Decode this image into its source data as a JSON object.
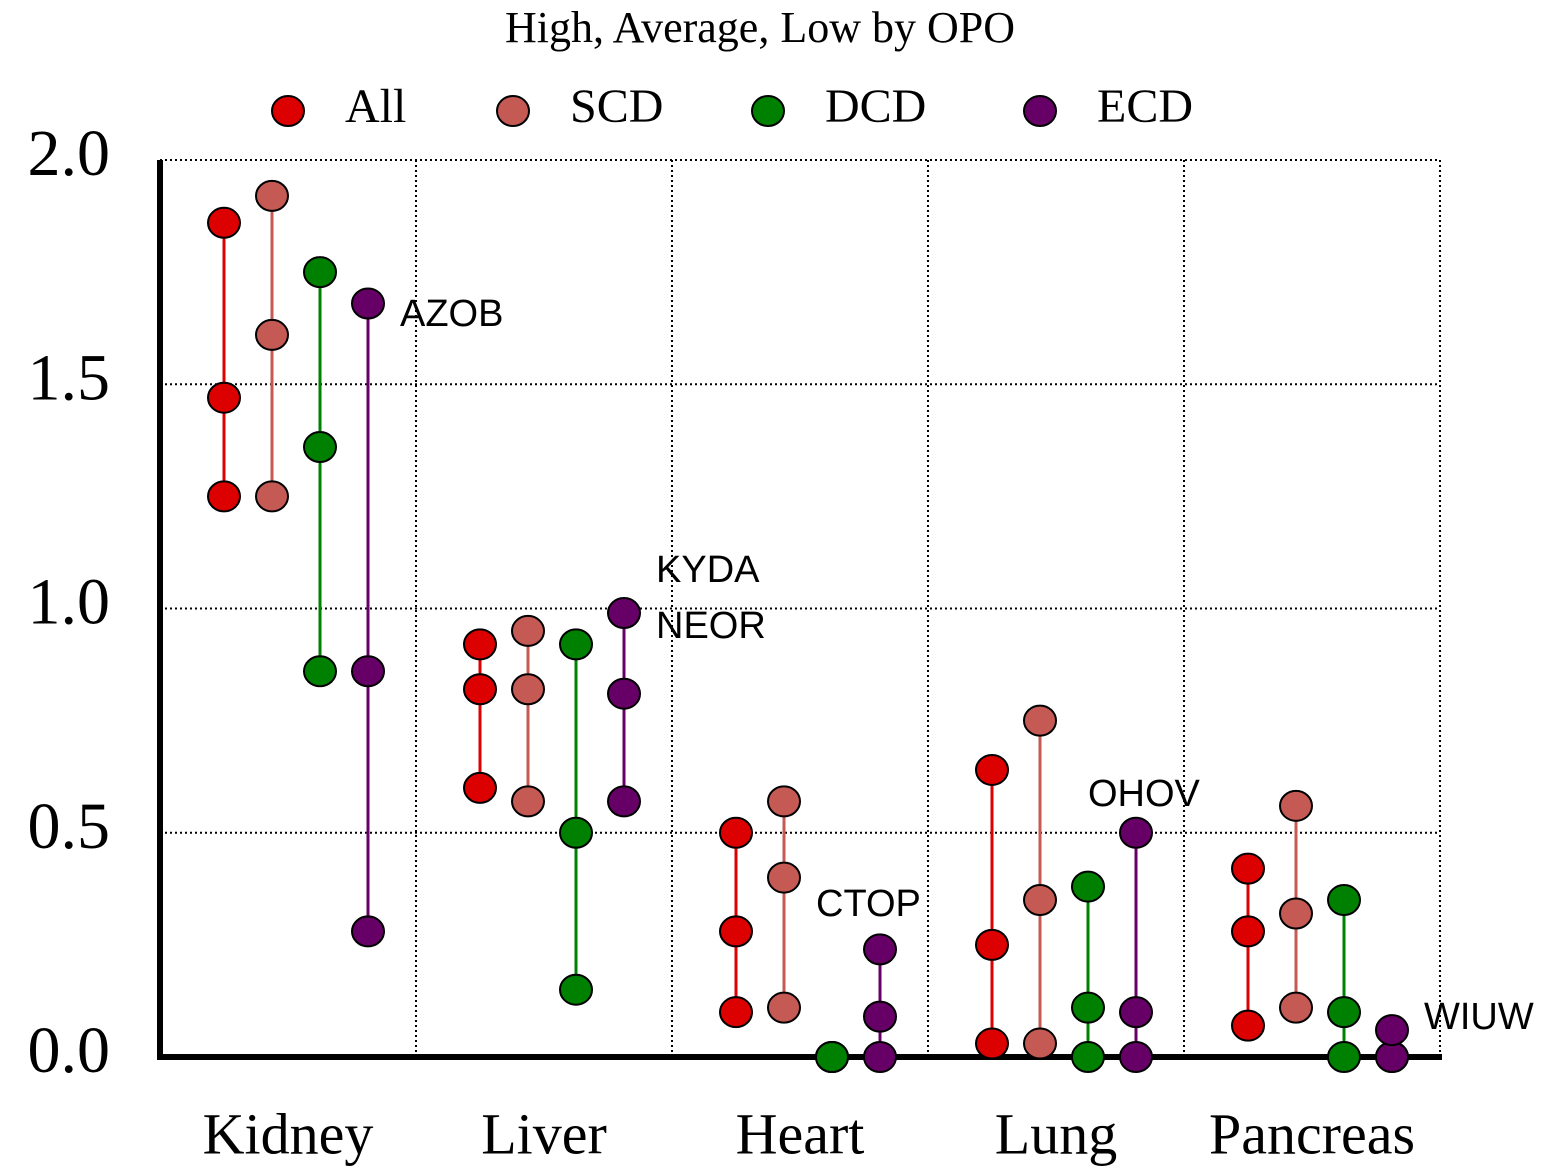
{
  "chart_data": {
    "type": "high-low-dot",
    "title": "High, Average, Low by OPO",
    "categories": [
      "Kidney",
      "Liver",
      "Heart",
      "Lung",
      "Pancreas"
    ],
    "series": [
      {
        "name": "All",
        "color": "#dd0000",
        "high": [
          1.86,
          0.92,
          0.5,
          0.64,
          0.42
        ],
        "average": [
          1.47,
          0.82,
          0.28,
          0.25,
          0.28
        ],
        "low": [
          1.25,
          0.6,
          0.1,
          0.03,
          0.07
        ]
      },
      {
        "name": "SCD",
        "color": "#c55a55",
        "high": [
          1.92,
          0.95,
          0.57,
          0.75,
          0.56
        ],
        "average": [
          1.61,
          0.82,
          0.4,
          0.35,
          0.32
        ],
        "low": [
          1.25,
          0.57,
          0.11,
          0.03,
          0.11
        ]
      },
      {
        "name": "DCD",
        "color": "#008000",
        "high": [
          1.75,
          0.92,
          0.0,
          0.38,
          0.35
        ],
        "average": [
          1.36,
          0.5,
          0.0,
          0.11,
          0.1
        ],
        "low": [
          0.86,
          0.15,
          0.0,
          0.0,
          0.0
        ]
      },
      {
        "name": "ECD",
        "color": "#660066",
        "high": [
          1.68,
          0.99,
          0.24,
          0.5,
          0.06
        ],
        "average": [
          0.86,
          0.81,
          0.09,
          0.1,
          0.0
        ],
        "low": [
          0.28,
          0.57,
          0.0,
          0.0,
          0.0
        ]
      }
    ],
    "annotations": [
      "AZOB",
      "KYDA",
      "NEOR",
      "CTOP",
      "OHOV",
      "WIUW"
    ],
    "ylim": [
      0,
      2
    ],
    "yticks": [
      {
        "value": 0,
        "label": "0.0"
      },
      {
        "value": 0.5,
        "label": "0.5"
      },
      {
        "value": 1,
        "label": "1.0"
      },
      {
        "value": 1.5,
        "label": "1.5"
      },
      {
        "value": 2,
        "label": "2.0"
      }
    ],
    "grid": true,
    "legend": "top"
  }
}
